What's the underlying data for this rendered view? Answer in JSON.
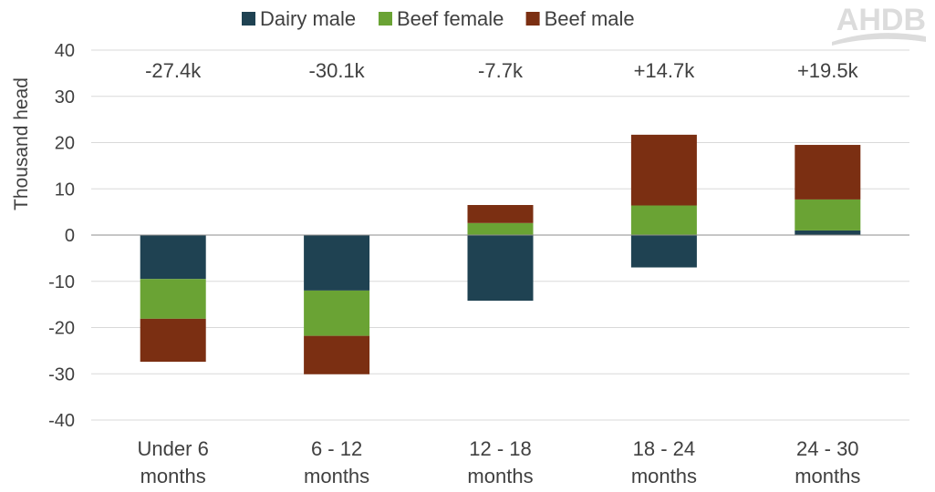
{
  "logo": "AHDB",
  "chart_data": {
    "type": "bar",
    "stacked": true,
    "ylabel": "Thousand head",
    "ylim": [
      -40,
      40
    ],
    "yticks": [
      40,
      30,
      20,
      10,
      0,
      -10,
      -20,
      -30,
      -40
    ],
    "grid": true,
    "legend_placement": "top",
    "categories": [
      "Under 6 months",
      "6 - 12 months",
      "12 - 18 months",
      "18 - 24 months",
      "24 - 30 months"
    ],
    "category_lines": [
      [
        "Under 6",
        "months"
      ],
      [
        "6 - 12",
        "months"
      ],
      [
        "12 - 18",
        "months"
      ],
      [
        "18 - 24",
        "months"
      ],
      [
        "24 - 30",
        "months"
      ]
    ],
    "annotations": [
      "-27.4k",
      "-30.1k",
      "-7.7k",
      "+14.7k",
      "+19.5k"
    ],
    "series": [
      {
        "name": "Dairy male",
        "color": "#1f4252",
        "values": [
          -9.5,
          -12.0,
          -14.2,
          -7.0,
          1.0
        ]
      },
      {
        "name": "Beef female",
        "color": "#6aa334",
        "values": [
          -8.6,
          -9.8,
          2.6,
          6.4,
          6.7
        ]
      },
      {
        "name": "Beef male",
        "color": "#7b2f12",
        "values": [
          -9.3,
          -8.3,
          3.9,
          15.3,
          11.8
        ]
      }
    ]
  }
}
